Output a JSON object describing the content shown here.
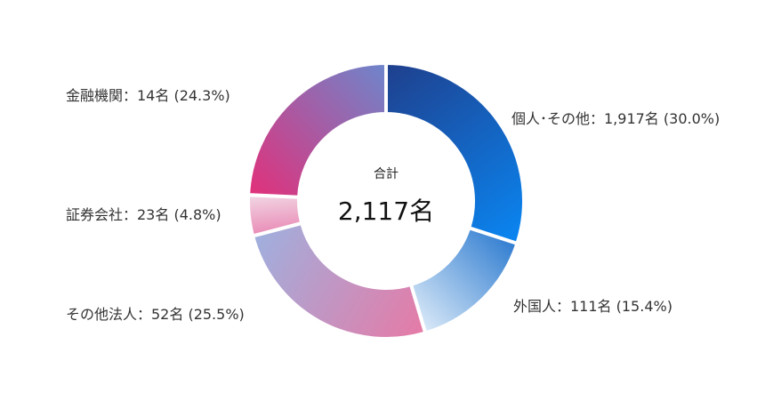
{
  "center": {
    "label": "合計",
    "total": "2,117名"
  },
  "chart_data": {
    "type": "pie",
    "style": "donut",
    "categories": [
      "個人・その他",
      "外国人",
      "その他法人",
      "証券会社",
      "金融機関"
    ],
    "values": [
      30.0,
      15.4,
      25.5,
      4.8,
      24.3
    ],
    "counts": [
      1917,
      111,
      52,
      23,
      14
    ],
    "labels": [
      "個人･その他：1,917名 (30.0%)",
      "外国人：111名 (15.4%)",
      "その他法人：52名 (25.5%)",
      "証券会社：23名 (4.8%)",
      "金融機関：14名 (24.3%)"
    ],
    "colors": [
      [
        "#1f3f8c",
        "#0a86f2"
      ],
      [
        "#2f7cd0",
        "#dbeaf8"
      ],
      [
        "#e67aa6",
        "#9fb0de"
      ],
      [
        "#e98bb5",
        "#f2d8e6"
      ],
      [
        "#e2307a",
        "#6d86cc"
      ]
    ],
    "title": "",
    "legend": "outside-labels"
  }
}
